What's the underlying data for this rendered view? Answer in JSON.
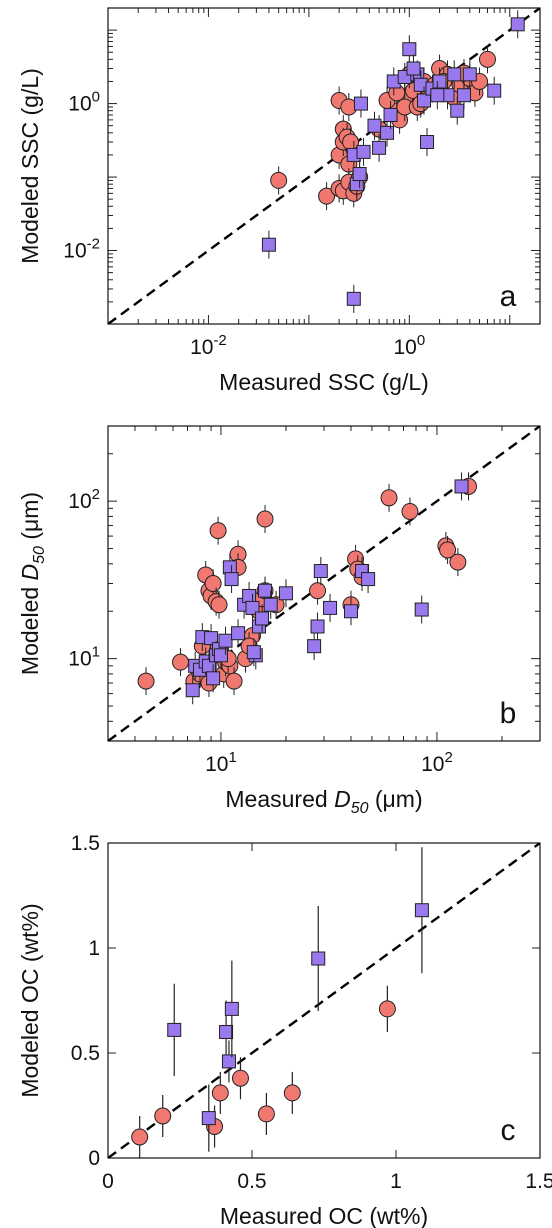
{
  "colors": {
    "circle_fill": "#f07870",
    "square_fill": "#9a78ee",
    "edge": "#222222",
    "diagonal": "#000000"
  },
  "chart_data": [
    {
      "type": "scatter",
      "id": "a",
      "panel_label": "a",
      "xlabel": {
        "main": "Measured SSC (g/L)",
        "sub": ""
      },
      "ylabel": {
        "main": "Modeled SSC (g/L)",
        "sub": ""
      },
      "xscale": "log",
      "yscale": "log",
      "xlim": [
        0.001,
        20
      ],
      "ylim": [
        0.001,
        20
      ],
      "xticks": [
        {
          "v": 0.01,
          "base": "10",
          "exp": "-2"
        },
        {
          "v": 1,
          "base": "10",
          "exp": "0"
        }
      ],
      "yticks": [
        {
          "v": 0.01,
          "base": "10",
          "exp": "-2"
        },
        {
          "v": 1,
          "base": "10",
          "exp": "0"
        }
      ],
      "diagonal": "1:1 dashed",
      "series": [
        {
          "marker": "circle",
          "points": [
            [
              0.05,
              0.09
            ],
            [
              0.15,
              0.055
            ],
            [
              0.2,
              1.1
            ],
            [
              0.22,
              0.45
            ],
            [
              0.2,
              0.2
            ],
            [
              0.25,
              0.9
            ],
            [
              0.22,
              0.3
            ],
            [
              0.24,
              0.35
            ],
            [
              0.26,
              0.3
            ],
            [
              0.25,
              0.15
            ],
            [
              0.2,
              0.07
            ],
            [
              0.22,
              0.065
            ],
            [
              0.25,
              0.085
            ],
            [
              0.28,
              0.06
            ],
            [
              0.32,
              0.1
            ],
            [
              0.3,
              0.075
            ],
            [
              0.5,
              0.45
            ],
            [
              0.7,
              0.8
            ],
            [
              0.8,
              0.6
            ],
            [
              0.6,
              1.1
            ],
            [
              0.9,
              1.2
            ],
            [
              0.9,
              0.9
            ],
            [
              1.1,
              1.5
            ],
            [
              1.2,
              0.9
            ],
            [
              1.4,
              2.0
            ],
            [
              1.6,
              1.4
            ],
            [
              1.8,
              1.8
            ],
            [
              2.0,
              3.0
            ],
            [
              2.4,
              2.5
            ],
            [
              2.8,
              1.2
            ],
            [
              3.2,
              1.8
            ],
            [
              4.0,
              2.2
            ],
            [
              4.5,
              1.4
            ],
            [
              5.0,
              2.0
            ],
            [
              6.0,
              4.0
            ],
            [
              0.75,
              1.4
            ],
            [
              1.0,
              2.5
            ],
            [
              1.3,
              1.0
            ],
            [
              2.2,
              2.0
            ],
            [
              3.5,
              2.6
            ]
          ]
        },
        {
          "marker": "square",
          "points": [
            [
              0.04,
              0.012
            ],
            [
              0.28,
              0.0022
            ],
            [
              0.3,
              0.08
            ],
            [
              0.28,
              0.2
            ],
            [
              0.32,
              0.11
            ],
            [
              0.35,
              0.22
            ],
            [
              0.33,
              1.0
            ],
            [
              0.45,
              0.5
            ],
            [
              0.5,
              0.25
            ],
            [
              0.6,
              0.4
            ],
            [
              0.65,
              0.7
            ],
            [
              0.7,
              2.0
            ],
            [
              0.9,
              2.3
            ],
            [
              1.0,
              5.5
            ],
            [
              1.2,
              2.5
            ],
            [
              1.3,
              1.8
            ],
            [
              1.4,
              1.1
            ],
            [
              1.5,
              0.3
            ],
            [
              1.7,
              1.6
            ],
            [
              2.0,
              2.0
            ],
            [
              2.4,
              1.3
            ],
            [
              2.8,
              2.5
            ],
            [
              3.0,
              0.8
            ],
            [
              3.5,
              1.3
            ],
            [
              4.0,
              2.5
            ],
            [
              7.0,
              1.5
            ],
            [
              12.0,
              12.0
            ],
            [
              1.1,
              3.0
            ],
            [
              1.9,
              1.3
            ]
          ]
        }
      ]
    },
    {
      "type": "scatter",
      "id": "b",
      "panel_label": "b",
      "xlabel": {
        "main": "Measured ",
        "sub": "50",
        "italic": "D",
        "unit": " (μm)"
      },
      "ylabel": {
        "main": "Modeled ",
        "sub": "50",
        "italic": "D",
        "unit": " (μm)"
      },
      "xscale": "log",
      "yscale": "log",
      "xlim": [
        3,
        300
      ],
      "ylim": [
        3,
        300
      ],
      "xticks": [
        {
          "v": 10,
          "base": "10",
          "exp": "1"
        },
        {
          "v": 100,
          "base": "10",
          "exp": "2"
        }
      ],
      "yticks": [
        {
          "v": 10,
          "base": "10",
          "exp": "1"
        },
        {
          "v": 100,
          "base": "10",
          "exp": "2"
        }
      ],
      "diagonal": "1:1 dashed",
      "series": [
        {
          "marker": "circle",
          "points": [
            [
              4.5,
              7.2
            ],
            [
              6.5,
              9.5
            ],
            [
              7.5,
              7.2
            ],
            [
              8,
              8
            ],
            [
              8.5,
              34
            ],
            [
              8.8,
              27
            ],
            [
              9,
              25
            ],
            [
              9.2,
              30
            ],
            [
              9.5,
              23
            ],
            [
              9.8,
              22
            ],
            [
              9.7,
              65
            ],
            [
              10,
              11
            ],
            [
              10.3,
              8
            ],
            [
              10.5,
              9.5
            ],
            [
              11,
              9
            ],
            [
              11.5,
              7.2
            ],
            [
              12,
              46
            ],
            [
              12,
              38
            ],
            [
              13,
              10
            ],
            [
              14,
              14
            ],
            [
              15,
              20
            ],
            [
              15.5,
              24
            ],
            [
              16,
              27
            ],
            [
              16,
              77
            ],
            [
              18,
              22
            ],
            [
              28,
              27
            ],
            [
              40,
              22
            ],
            [
              42,
              43
            ],
            [
              43,
              37
            ],
            [
              45,
              33
            ],
            [
              60,
              105
            ],
            [
              75,
              86
            ],
            [
              110,
              52
            ],
            [
              112,
              49
            ],
            [
              125,
              41
            ],
            [
              140,
              124
            ],
            [
              8.2,
              12
            ],
            [
              8.8,
              7
            ],
            [
              10.8,
              10
            ],
            [
              13.5,
              12
            ]
          ]
        },
        {
          "marker": "square",
          "points": [
            [
              7.4,
              6.3
            ],
            [
              7.6,
              9
            ],
            [
              8,
              8.5
            ],
            [
              8.2,
              13.7
            ],
            [
              8.5,
              9.6
            ],
            [
              8.8,
              9
            ],
            [
              9,
              13.5
            ],
            [
              9.2,
              7.5
            ],
            [
              9.5,
              10.5
            ],
            [
              9.8,
              11.5
            ],
            [
              10,
              10.5
            ],
            [
              10.5,
              13
            ],
            [
              11,
              38
            ],
            [
              11.2,
              32
            ],
            [
              12,
              14.5
            ],
            [
              12.8,
              22
            ],
            [
              13.5,
              25
            ],
            [
              14,
              21
            ],
            [
              14.5,
              10.5
            ],
            [
              15,
              16
            ],
            [
              15.5,
              18
            ],
            [
              16,
              27
            ],
            [
              17,
              22
            ],
            [
              20,
              26
            ],
            [
              27,
              12
            ],
            [
              28,
              16
            ],
            [
              29,
              36
            ],
            [
              32,
              21
            ],
            [
              40,
              20
            ],
            [
              45,
              36
            ],
            [
              48,
              32
            ],
            [
              85,
              20.5
            ],
            [
              130,
              124
            ],
            [
              14.2,
              11
            ]
          ]
        }
      ]
    },
    {
      "type": "scatter",
      "id": "c",
      "panel_label": "c",
      "xlabel": {
        "main": "Measured OC (wt%)",
        "sub": ""
      },
      "ylabel": {
        "main": "Modeled OC (wt%)",
        "sub": ""
      },
      "xscale": "linear",
      "yscale": "linear",
      "xlim": [
        0,
        1.5
      ],
      "ylim": [
        0,
        1.5
      ],
      "xticks": [
        {
          "v": 0,
          "text": "0"
        },
        {
          "v": 0.5,
          "text": "0.5"
        },
        {
          "v": 1,
          "text": "1"
        },
        {
          "v": 1.5,
          "text": "1.5"
        }
      ],
      "yticks": [
        {
          "v": 0,
          "text": "0"
        },
        {
          "v": 0.5,
          "text": "0.5"
        },
        {
          "v": 1,
          "text": "1"
        },
        {
          "v": 1.5,
          "text": "1.5"
        }
      ],
      "diagonal": "1:1 dashed",
      "series": [
        {
          "marker": "circle",
          "points": [
            [
              0.11,
              0.1,
              0.1
            ],
            [
              0.19,
              0.2,
              0.1
            ],
            [
              0.37,
              0.15,
              0.1
            ],
            [
              0.39,
              0.31,
              0.1
            ],
            [
              0.46,
              0.38,
              0.1
            ],
            [
              0.55,
              0.21,
              0.1
            ],
            [
              0.64,
              0.31,
              0.1
            ],
            [
              0.97,
              0.71,
              0.11
            ]
          ]
        },
        {
          "marker": "square",
          "points": [
            [
              0.23,
              0.61,
              0.22
            ],
            [
              0.35,
              0.19,
              0.16
            ],
            [
              0.41,
              0.6,
              0.15
            ],
            [
              0.42,
              0.46,
              0.1
            ],
            [
              0.43,
              0.71,
              0.23
            ],
            [
              0.73,
              0.95,
              0.25
            ],
            [
              1.09,
              1.18,
              0.3
            ]
          ]
        }
      ]
    }
  ]
}
